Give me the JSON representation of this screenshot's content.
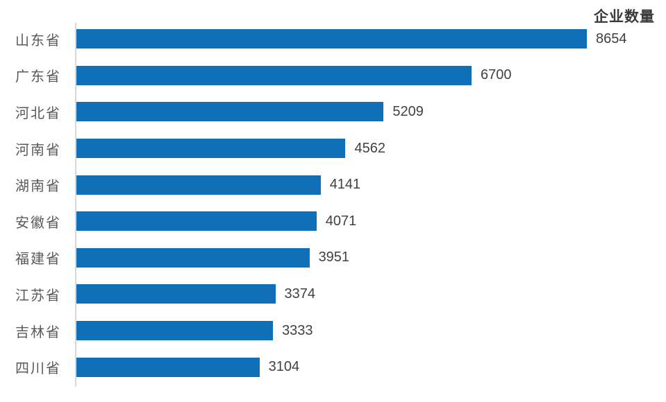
{
  "chart_data": {
    "type": "bar",
    "orientation": "horizontal",
    "title": "企业数量",
    "categories": [
      "山东省",
      "广东省",
      "河北省",
      "河南省",
      "湖南省",
      "安徽省",
      "福建省",
      "江苏省",
      "吉林省",
      "四川省"
    ],
    "values": [
      8654,
      6700,
      5209,
      4562,
      4141,
      4071,
      3951,
      3374,
      3333,
      3104
    ],
    "data_labels": [
      8654,
      6700,
      5209,
      4562,
      4141,
      4071,
      3951,
      3374,
      3333,
      3104
    ],
    "xlim": [
      0,
      8654
    ],
    "grid": false,
    "legend_position": "none",
    "colors": {
      "bar": "#0F70B8",
      "axis_line": "#D9D9D9",
      "category_label": "#595959",
      "value_label": "#404040",
      "title": "#3A3A3A",
      "background": "#FFFFFF"
    }
  }
}
